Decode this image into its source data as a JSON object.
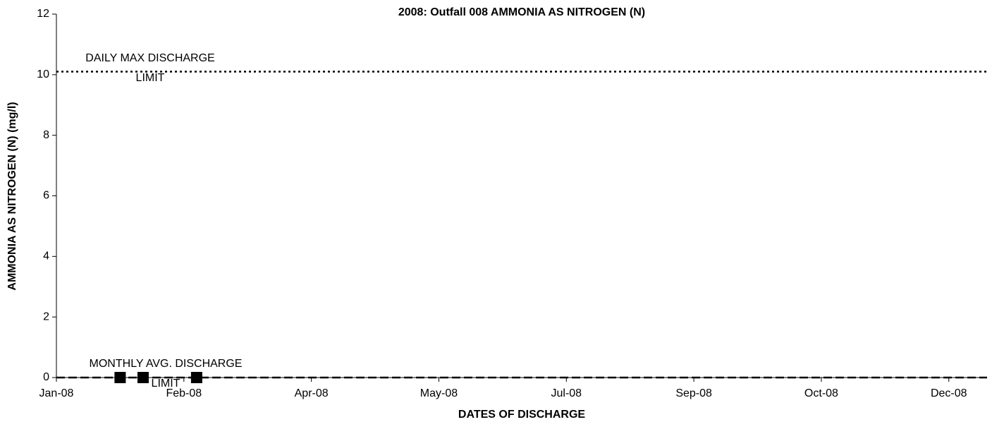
{
  "chart_data": {
    "type": "scatter",
    "title": "2008: Outfall 008 AMMONIA AS NITROGEN (N)",
    "xlabel": "DATES OF DISCHARGE",
    "ylabel": "AMMONIA AS NITROGEN (N) (mg/l)",
    "series": [
      {
        "color": "#000000",
        "x": [
          25,
          34,
          55
        ],
        "values": [
          0,
          0,
          0
        ]
      }
    ],
    "limits": [
      {
        "label_lines": [
          "DAILY MAX DISCHARGE",
          "LIMIT"
        ],
        "value": 10.1,
        "style": "dotted",
        "color": "#000000"
      },
      {
        "label_lines": [
          "MONTHLY AVG. DISCHARGE",
          "LIMIT"
        ],
        "value": 0,
        "style": "dashed",
        "color": "#000000"
      }
    ],
    "xlim": [
      0,
      365
    ],
    "xticks": [
      {
        "value": 0,
        "label": "Jan-08"
      },
      {
        "value": 50,
        "label": "Feb-08"
      },
      {
        "value": 100,
        "label": "Apr-08"
      },
      {
        "value": 150,
        "label": "May-08"
      },
      {
        "value": 200,
        "label": "Jul-08"
      },
      {
        "value": 250,
        "label": "Sep-08"
      },
      {
        "value": 300,
        "label": "Oct-08"
      },
      {
        "value": 350,
        "label": "Dec-08"
      }
    ],
    "ylim": [
      0,
      12
    ],
    "yticks": [
      0,
      2,
      4,
      6,
      8,
      10,
      12
    ],
    "grid": false
  }
}
